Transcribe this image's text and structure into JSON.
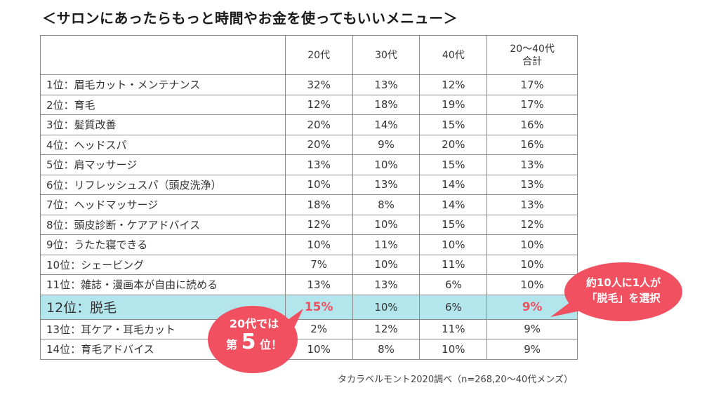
{
  "title": "＜サロンにあったらもっと時間やお金を使ってもいいメニュー＞",
  "table": {
    "headers": [
      "",
      "20代",
      "30代",
      "40代",
      "20～40代",
      "合計"
    ],
    "rows": [
      {
        "item": "1位：眉毛カット・メンテナンス",
        "v20": "32%",
        "v30": "13%",
        "v40": "12%",
        "total": "17%"
      },
      {
        "item": "2位：育毛",
        "v20": "12%",
        "v30": "18%",
        "v40": "19%",
        "total": "17%"
      },
      {
        "item": "3位：髪質改善",
        "v20": "20%",
        "v30": "14%",
        "v40": "15%",
        "total": "16%"
      },
      {
        "item": "4位：ヘッドスパ",
        "v20": "20%",
        "v30": "9%",
        "v40": "20%",
        "total": "16%"
      },
      {
        "item": "5位：肩マッサージ",
        "v20": "13%",
        "v30": "10%",
        "v40": "15%",
        "total": "13%"
      },
      {
        "item": "6位：リフレッシュスパ（頭皮洗浄）",
        "v20": "10%",
        "v30": "13%",
        "v40": "14%",
        "total": "13%"
      },
      {
        "item": "7位：ヘッドマッサージ",
        "v20": "18%",
        "v30": "8%",
        "v40": "14%",
        "total": "13%"
      },
      {
        "item": "8位：頭皮診断・ケアアドバイス",
        "v20": "12%",
        "v30": "10%",
        "v40": "15%",
        "total": "12%"
      },
      {
        "item": "9位：うたた寝できる",
        "v20": "10%",
        "v30": "11%",
        "v40": "10%",
        "total": "10%"
      },
      {
        "item": "10位：シェービング",
        "v20": "7%",
        "v30": "10%",
        "v40": "11%",
        "total": "10%"
      },
      {
        "item": "11位：雑誌・漫画本が自由に読める",
        "v20": "13%",
        "v30": "13%",
        "v40": "6%",
        "total": "10%"
      },
      {
        "item": "12位：脱毛",
        "v20": "15%",
        "v30": "10%",
        "v40": "6%",
        "total": "9%"
      },
      {
        "item": "13位：耳ケア・耳毛カット",
        "v20": "2%",
        "v30": "12%",
        "v40": "11%",
        "total": "9%"
      },
      {
        "item": "14位：育毛アドバイス",
        "v20": "10%",
        "v30": "8%",
        "v40": "10%",
        "total": "9%"
      }
    ]
  },
  "callout_left": {
    "line1": "20代では",
    "prefix": "第",
    "rank": "5",
    "suffix": "位！"
  },
  "callout_right": {
    "line1": "約10人に1人が",
    "line2": "「脱毛」を選択"
  },
  "source": "タカラベルモント2020調べ（n=268,20～40代メンズ）",
  "colors": {
    "highlight_row": "#b3e5ec",
    "accent": "#f0505f",
    "border": "#8c8c8c"
  }
}
